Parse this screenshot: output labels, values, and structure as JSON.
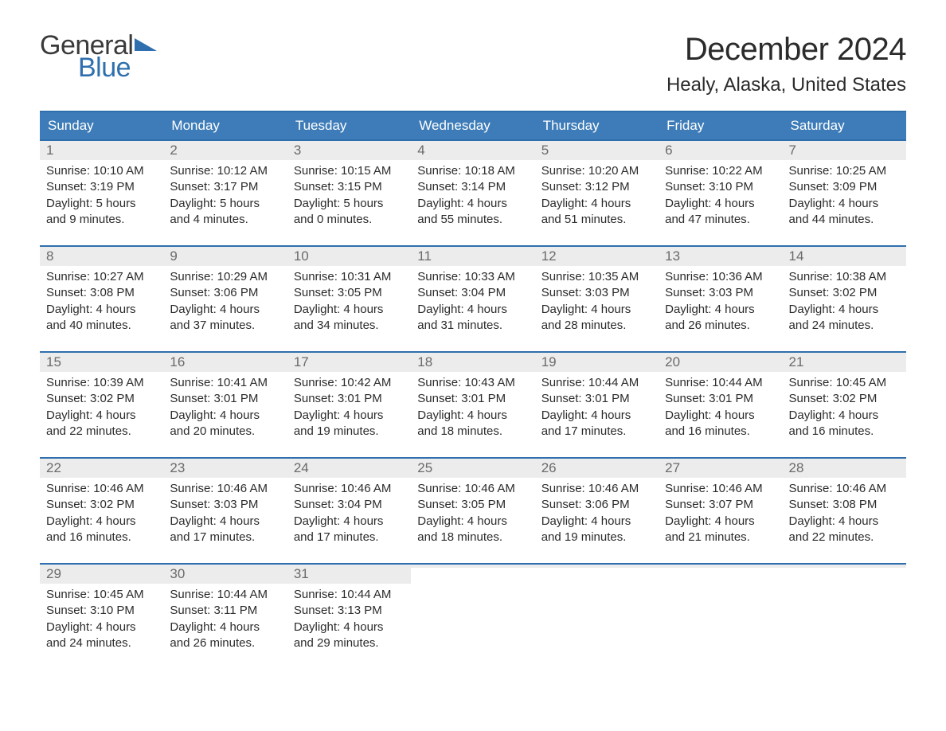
{
  "brand": {
    "word1": "General",
    "word2": "Blue",
    "word1_color": "#3a3a3a",
    "word2_color": "#2f6fad",
    "flag_color": "#2f6fad"
  },
  "title": {
    "month": "December 2024",
    "location": "Healy, Alaska, United States",
    "month_fontsize": 40,
    "location_fontsize": 24,
    "text_color": "#2b2b2b"
  },
  "colors": {
    "header_bg": "#3d7cb8",
    "header_border": "#2f6fad",
    "daynum_bg": "#ececec",
    "daynum_color": "#6a6a6a",
    "body_text": "#2b2b2b",
    "page_bg": "#ffffff"
  },
  "typography": {
    "dow_fontsize": 17,
    "daynum_fontsize": 17,
    "body_fontsize": 15
  },
  "dow": [
    "Sunday",
    "Monday",
    "Tuesday",
    "Wednesday",
    "Thursday",
    "Friday",
    "Saturday"
  ],
  "weeks": [
    [
      {
        "n": "1",
        "sr": "Sunrise: 10:10 AM",
        "ss": "Sunset: 3:19 PM",
        "d1": "Daylight: 5 hours",
        "d2": "and 9 minutes."
      },
      {
        "n": "2",
        "sr": "Sunrise: 10:12 AM",
        "ss": "Sunset: 3:17 PM",
        "d1": "Daylight: 5 hours",
        "d2": "and 4 minutes."
      },
      {
        "n": "3",
        "sr": "Sunrise: 10:15 AM",
        "ss": "Sunset: 3:15 PM",
        "d1": "Daylight: 5 hours",
        "d2": "and 0 minutes."
      },
      {
        "n": "4",
        "sr": "Sunrise: 10:18 AM",
        "ss": "Sunset: 3:14 PM",
        "d1": "Daylight: 4 hours",
        "d2": "and 55 minutes."
      },
      {
        "n": "5",
        "sr": "Sunrise: 10:20 AM",
        "ss": "Sunset: 3:12 PM",
        "d1": "Daylight: 4 hours",
        "d2": "and 51 minutes."
      },
      {
        "n": "6",
        "sr": "Sunrise: 10:22 AM",
        "ss": "Sunset: 3:10 PM",
        "d1": "Daylight: 4 hours",
        "d2": "and 47 minutes."
      },
      {
        "n": "7",
        "sr": "Sunrise: 10:25 AM",
        "ss": "Sunset: 3:09 PM",
        "d1": "Daylight: 4 hours",
        "d2": "and 44 minutes."
      }
    ],
    [
      {
        "n": "8",
        "sr": "Sunrise: 10:27 AM",
        "ss": "Sunset: 3:08 PM",
        "d1": "Daylight: 4 hours",
        "d2": "and 40 minutes."
      },
      {
        "n": "9",
        "sr": "Sunrise: 10:29 AM",
        "ss": "Sunset: 3:06 PM",
        "d1": "Daylight: 4 hours",
        "d2": "and 37 minutes."
      },
      {
        "n": "10",
        "sr": "Sunrise: 10:31 AM",
        "ss": "Sunset: 3:05 PM",
        "d1": "Daylight: 4 hours",
        "d2": "and 34 minutes."
      },
      {
        "n": "11",
        "sr": "Sunrise: 10:33 AM",
        "ss": "Sunset: 3:04 PM",
        "d1": "Daylight: 4 hours",
        "d2": "and 31 minutes."
      },
      {
        "n": "12",
        "sr": "Sunrise: 10:35 AM",
        "ss": "Sunset: 3:03 PM",
        "d1": "Daylight: 4 hours",
        "d2": "and 28 minutes."
      },
      {
        "n": "13",
        "sr": "Sunrise: 10:36 AM",
        "ss": "Sunset: 3:03 PM",
        "d1": "Daylight: 4 hours",
        "d2": "and 26 minutes."
      },
      {
        "n": "14",
        "sr": "Sunrise: 10:38 AM",
        "ss": "Sunset: 3:02 PM",
        "d1": "Daylight: 4 hours",
        "d2": "and 24 minutes."
      }
    ],
    [
      {
        "n": "15",
        "sr": "Sunrise: 10:39 AM",
        "ss": "Sunset: 3:02 PM",
        "d1": "Daylight: 4 hours",
        "d2": "and 22 minutes."
      },
      {
        "n": "16",
        "sr": "Sunrise: 10:41 AM",
        "ss": "Sunset: 3:01 PM",
        "d1": "Daylight: 4 hours",
        "d2": "and 20 minutes."
      },
      {
        "n": "17",
        "sr": "Sunrise: 10:42 AM",
        "ss": "Sunset: 3:01 PM",
        "d1": "Daylight: 4 hours",
        "d2": "and 19 minutes."
      },
      {
        "n": "18",
        "sr": "Sunrise: 10:43 AM",
        "ss": "Sunset: 3:01 PM",
        "d1": "Daylight: 4 hours",
        "d2": "and 18 minutes."
      },
      {
        "n": "19",
        "sr": "Sunrise: 10:44 AM",
        "ss": "Sunset: 3:01 PM",
        "d1": "Daylight: 4 hours",
        "d2": "and 17 minutes."
      },
      {
        "n": "20",
        "sr": "Sunrise: 10:44 AM",
        "ss": "Sunset: 3:01 PM",
        "d1": "Daylight: 4 hours",
        "d2": "and 16 minutes."
      },
      {
        "n": "21",
        "sr": "Sunrise: 10:45 AM",
        "ss": "Sunset: 3:02 PM",
        "d1": "Daylight: 4 hours",
        "d2": "and 16 minutes."
      }
    ],
    [
      {
        "n": "22",
        "sr": "Sunrise: 10:46 AM",
        "ss": "Sunset: 3:02 PM",
        "d1": "Daylight: 4 hours",
        "d2": "and 16 minutes."
      },
      {
        "n": "23",
        "sr": "Sunrise: 10:46 AM",
        "ss": "Sunset: 3:03 PM",
        "d1": "Daylight: 4 hours",
        "d2": "and 17 minutes."
      },
      {
        "n": "24",
        "sr": "Sunrise: 10:46 AM",
        "ss": "Sunset: 3:04 PM",
        "d1": "Daylight: 4 hours",
        "d2": "and 17 minutes."
      },
      {
        "n": "25",
        "sr": "Sunrise: 10:46 AM",
        "ss": "Sunset: 3:05 PM",
        "d1": "Daylight: 4 hours",
        "d2": "and 18 minutes."
      },
      {
        "n": "26",
        "sr": "Sunrise: 10:46 AM",
        "ss": "Sunset: 3:06 PM",
        "d1": "Daylight: 4 hours",
        "d2": "and 19 minutes."
      },
      {
        "n": "27",
        "sr": "Sunrise: 10:46 AM",
        "ss": "Sunset: 3:07 PM",
        "d1": "Daylight: 4 hours",
        "d2": "and 21 minutes."
      },
      {
        "n": "28",
        "sr": "Sunrise: 10:46 AM",
        "ss": "Sunset: 3:08 PM",
        "d1": "Daylight: 4 hours",
        "d2": "and 22 minutes."
      }
    ],
    [
      {
        "n": "29",
        "sr": "Sunrise: 10:45 AM",
        "ss": "Sunset: 3:10 PM",
        "d1": "Daylight: 4 hours",
        "d2": "and 24 minutes."
      },
      {
        "n": "30",
        "sr": "Sunrise: 10:44 AM",
        "ss": "Sunset: 3:11 PM",
        "d1": "Daylight: 4 hours",
        "d2": "and 26 minutes."
      },
      {
        "n": "31",
        "sr": "Sunrise: 10:44 AM",
        "ss": "Sunset: 3:13 PM",
        "d1": "Daylight: 4 hours",
        "d2": "and 29 minutes."
      },
      {
        "empty": true
      },
      {
        "empty": true
      },
      {
        "empty": true
      },
      {
        "empty": true
      }
    ]
  ]
}
